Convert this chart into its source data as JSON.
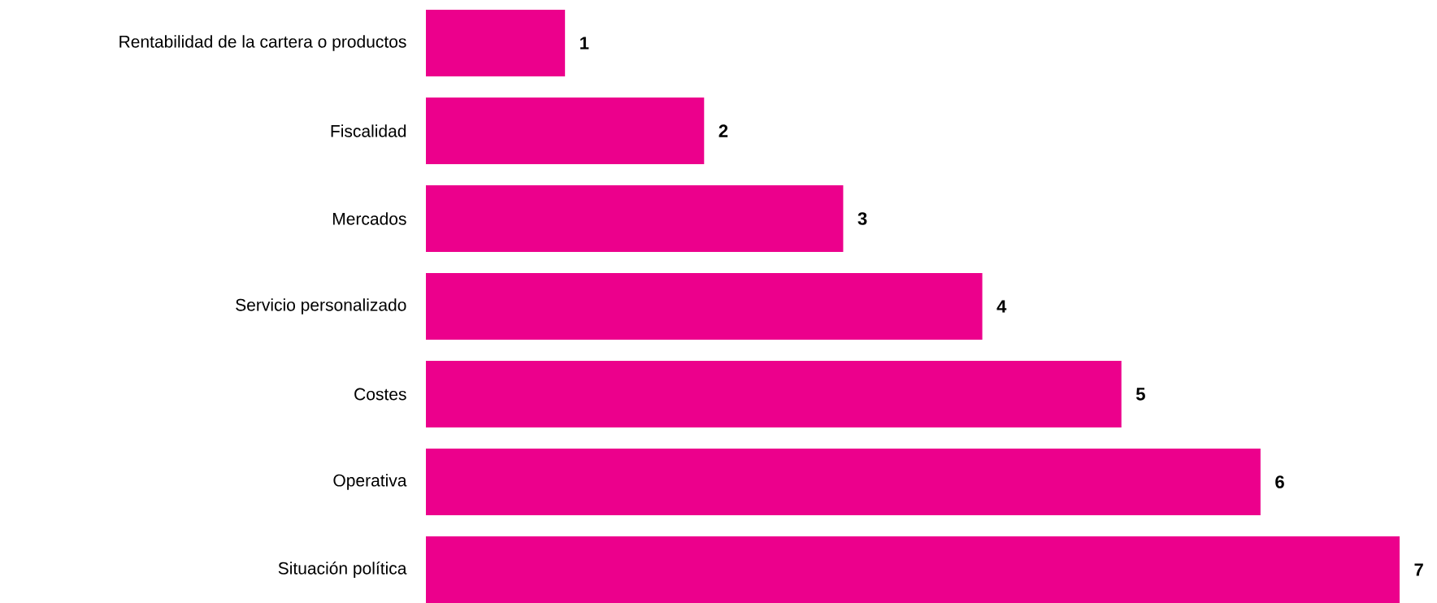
{
  "chart_data": {
    "type": "bar",
    "orientation": "horizontal",
    "categories": [
      "Rentabilidad de la cartera o productos",
      "Fiscalidad",
      "Mercados",
      "Servicio personalizado",
      "Costes",
      "Operativa",
      "Situación política"
    ],
    "values": [
      1,
      2,
      3,
      4,
      5,
      6,
      7
    ],
    "color": "#ec008c",
    "xlim": [
      0,
      7
    ],
    "data_labels": true
  }
}
